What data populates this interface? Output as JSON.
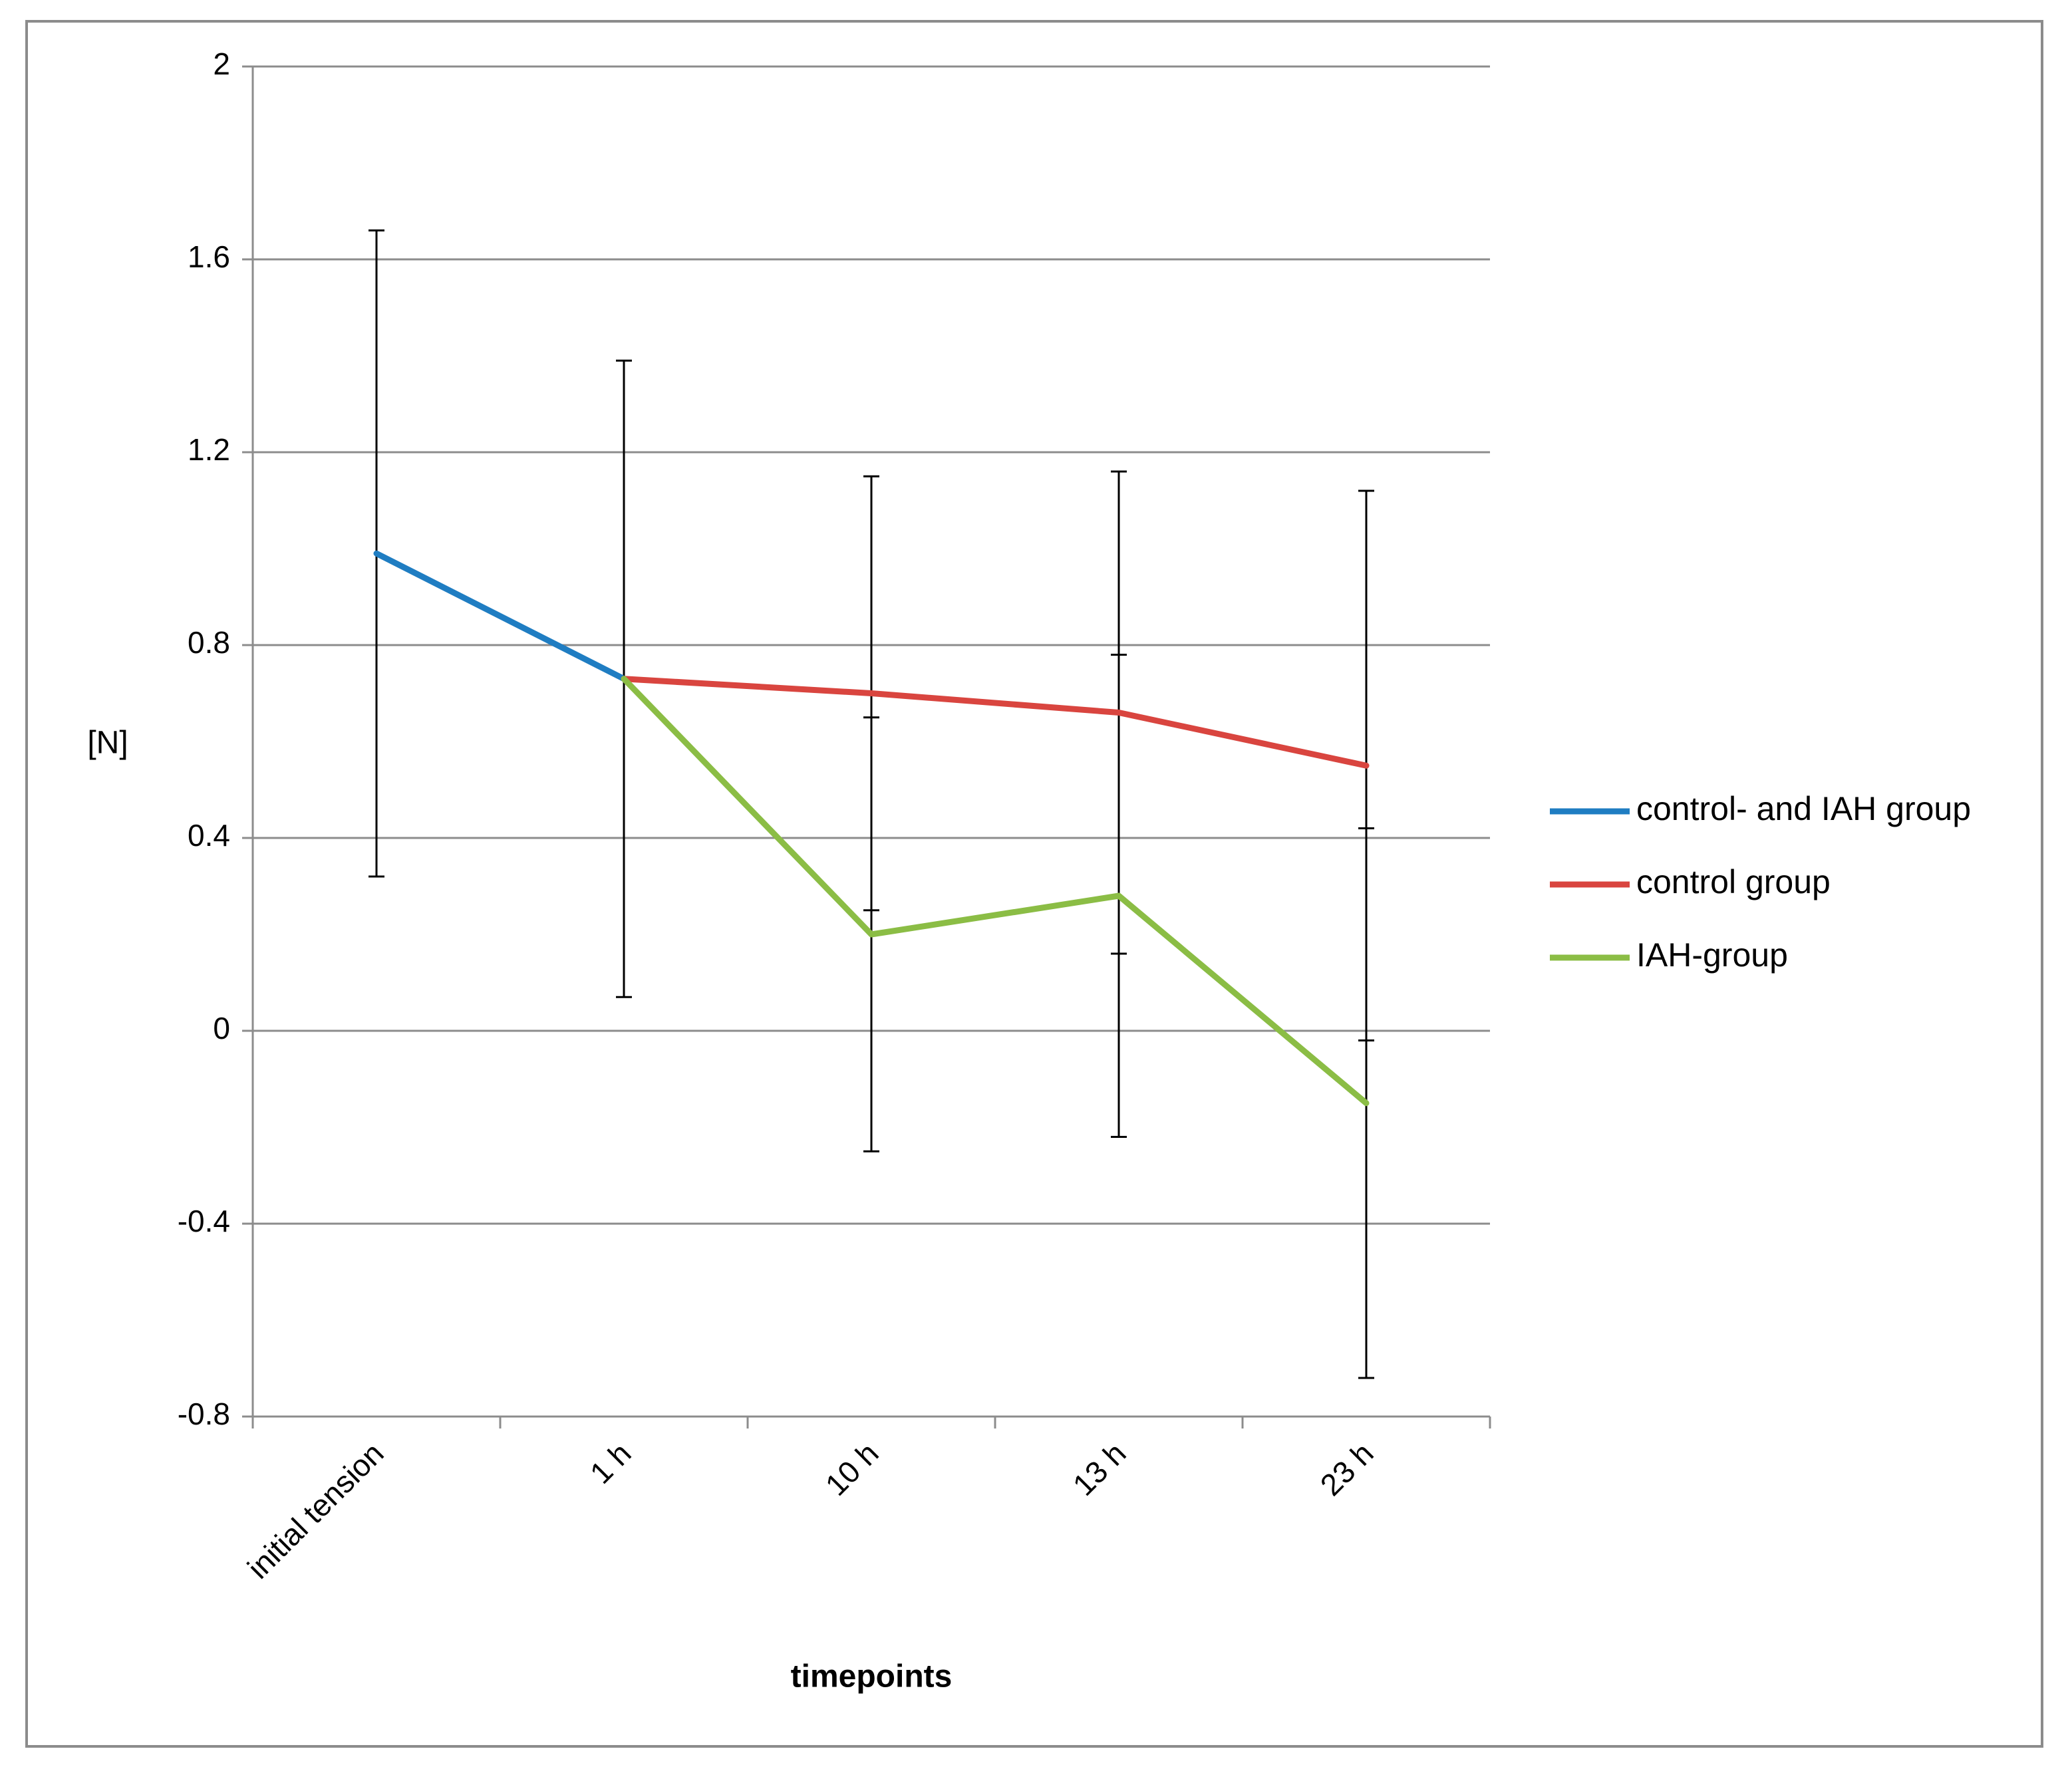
{
  "chart_data": {
    "type": "line",
    "title": "",
    "xlabel": "timepoints",
    "ylabel": "[N]",
    "categories": [
      "initial tension",
      "1 h",
      "10 h",
      "13 h",
      "23 h"
    ],
    "ylim": [
      -0.8,
      2
    ],
    "yticks": [
      "-0.8",
      "-0.4",
      "0",
      "0.4",
      "0.8",
      "1.2",
      "1.6",
      "2"
    ],
    "ytick_values": [
      -0.8,
      -0.4,
      0,
      0.4,
      0.8,
      1.2,
      1.6,
      2
    ],
    "grid": true,
    "legend_position": "right",
    "series": [
      {
        "name": "control- and IAH group",
        "color": "#1f7dc2",
        "values": [
          0.99,
          0.73,
          null,
          null,
          null
        ],
        "error": [
          0.67,
          null,
          null,
          null,
          null
        ]
      },
      {
        "name": "control group",
        "color": "#d9453f",
        "values": [
          null,
          0.73,
          0.7,
          0.66,
          0.55
        ],
        "error": [
          null,
          0.66,
          0.45,
          0.5,
          0.57
        ]
      },
      {
        "name": "IAH-group",
        "color": "#8bbd45",
        "values": [
          null,
          0.73,
          0.2,
          0.28,
          -0.15
        ],
        "error": [
          null,
          null,
          0.45,
          0.5,
          0.57
        ]
      }
    ]
  }
}
